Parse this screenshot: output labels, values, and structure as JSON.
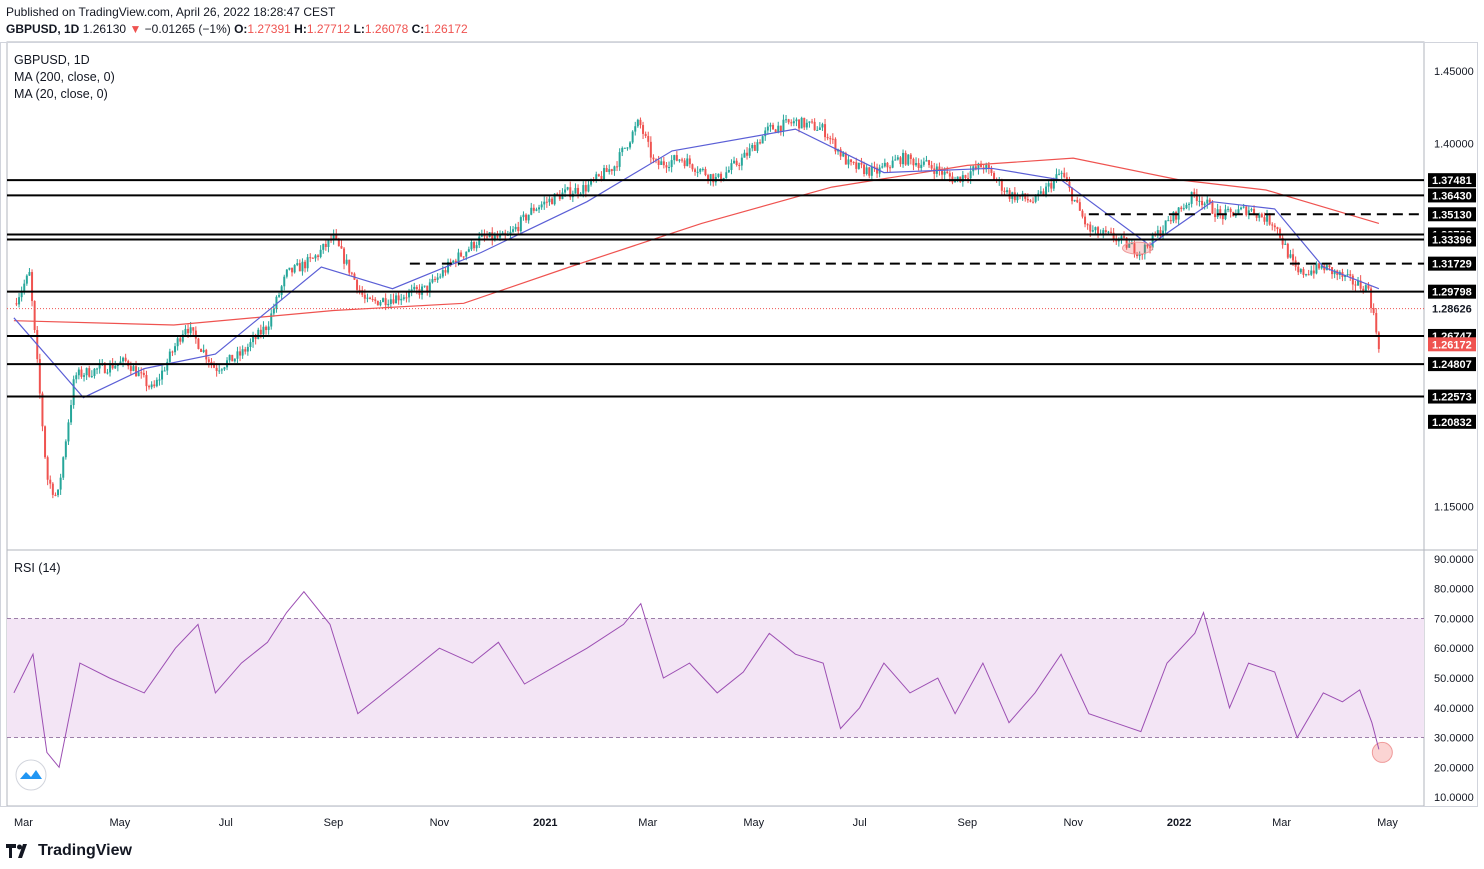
{
  "header": {
    "published": "Published on TradingView.com, April 26, 2022 18:28:47 CEST",
    "symbol": "GBPUSD, 1D",
    "last": "1.26130",
    "change": "−0.01265 (−1%)",
    "o_label": "O:",
    "o": "1.27391",
    "h_label": "H:",
    "h": "1.27712",
    "l_label": "L:",
    "l": "1.26078",
    "c_label": "C:",
    "c": "1.26172"
  },
  "legend": {
    "symbol": "GBPUSD, 1D",
    "ma200": "MA (200, close, 0)",
    "ma20": "MA (20, close, 0)",
    "rsi": "RSI (14)"
  },
  "brand": {
    "name": "TradingView"
  },
  "colors": {
    "up": "#26a69a",
    "down": "#ef5350",
    "ma200": "#ef5350",
    "ma20": "#5b5fd6",
    "rsi": "#9c4fb3",
    "rsi_band": "#f3e5f5",
    "level": "#000000",
    "current": "#ef5350"
  },
  "chart_data": [
    {
      "type": "candlestick",
      "title": "GBPUSD, 1D",
      "ylim": [
        1.12,
        1.47
      ],
      "y_ticks": [
        "1.45000",
        "1.40000",
        "1.15000"
      ],
      "x_ticks": [
        "Mar",
        "May",
        "Jul",
        "Sep",
        "Nov",
        "2021",
        "Mar",
        "May",
        "Jul",
        "Sep",
        "Nov",
        "2022",
        "Mar",
        "May"
      ],
      "x_tick_dates": [
        "2020-03",
        "2020-05",
        "2020-07",
        "2020-09",
        "2020-11",
        "2021-01",
        "2021-03",
        "2021-05",
        "2021-07",
        "2021-09",
        "2021-11",
        "2022-01",
        "2022-03",
        "2022-05"
      ],
      "close_path": [
        [
          "2020-03-01",
          1.29
        ],
        [
          "2020-03-10",
          1.31
        ],
        [
          "2020-03-20",
          1.17
        ],
        [
          "2020-03-26",
          1.155
        ],
        [
          "2020-04-05",
          1.24
        ],
        [
          "2020-04-20",
          1.245
        ],
        [
          "2020-05-05",
          1.25
        ],
        [
          "2020-05-20",
          1.23
        ],
        [
          "2020-06-08",
          1.275
        ],
        [
          "2020-06-25",
          1.245
        ],
        [
          "2020-07-10",
          1.255
        ],
        [
          "2020-07-25",
          1.275
        ],
        [
          "2020-08-05",
          1.31
        ],
        [
          "2020-08-20",
          1.32
        ],
        [
          "2020-09-01",
          1.335
        ],
        [
          "2020-09-20",
          1.29
        ],
        [
          "2020-10-10",
          1.295
        ],
        [
          "2020-10-25",
          1.3
        ],
        [
          "2020-11-10",
          1.32
        ],
        [
          "2020-11-25",
          1.335
        ],
        [
          "2020-12-10",
          1.335
        ],
        [
          "2020-12-25",
          1.355
        ],
        [
          "2021-01-10",
          1.365
        ],
        [
          "2021-01-25",
          1.37
        ],
        [
          "2021-02-10",
          1.385
        ],
        [
          "2021-02-24",
          1.415
        ],
        [
          "2021-03-05",
          1.385
        ],
        [
          "2021-03-20",
          1.39
        ],
        [
          "2021-04-10",
          1.375
        ],
        [
          "2021-04-25",
          1.39
        ],
        [
          "2021-05-10",
          1.41
        ],
        [
          "2021-05-25",
          1.415
        ],
        [
          "2021-06-10",
          1.41
        ],
        [
          "2021-06-25",
          1.385
        ],
        [
          "2021-07-10",
          1.38
        ],
        [
          "2021-07-25",
          1.39
        ],
        [
          "2021-08-10",
          1.385
        ],
        [
          "2021-08-25",
          1.375
        ],
        [
          "2021-09-10",
          1.385
        ],
        [
          "2021-09-25",
          1.365
        ],
        [
          "2021-10-10",
          1.36
        ],
        [
          "2021-10-25",
          1.38
        ],
        [
          "2021-11-10",
          1.34
        ],
        [
          "2021-11-25",
          1.335
        ],
        [
          "2021-12-10",
          1.325
        ],
        [
          "2021-12-25",
          1.345
        ],
        [
          "2022-01-10",
          1.365
        ],
        [
          "2022-01-25",
          1.35
        ],
        [
          "2022-02-10",
          1.355
        ],
        [
          "2022-02-25",
          1.345
        ],
        [
          "2022-03-10",
          1.31
        ],
        [
          "2022-03-25",
          1.315
        ],
        [
          "2022-04-10",
          1.305
        ],
        [
          "2022-04-20",
          1.3
        ],
        [
          "2022-04-26",
          1.2617
        ]
      ],
      "series": [
        {
          "name": "MA (200, close, 0)",
          "values": [
            [
              "2020-03-01",
              1.278
            ],
            [
              "2020-06-01",
              1.275
            ],
            [
              "2020-09-01",
              1.285
            ],
            [
              "2020-11-15",
              1.29
            ],
            [
              "2021-01-15",
              1.315
            ],
            [
              "2021-04-01",
              1.345
            ],
            [
              "2021-06-15",
              1.37
            ],
            [
              "2021-09-01",
              1.385
            ],
            [
              "2021-11-01",
              1.39
            ],
            [
              "2022-01-01",
              1.375
            ],
            [
              "2022-02-20",
              1.368
            ],
            [
              "2022-04-26",
              1.345
            ]
          ]
        },
        {
          "name": "MA (20, close, 0)",
          "values": [
            [
              "2020-03-01",
              1.28
            ],
            [
              "2020-04-10",
              1.225
            ],
            [
              "2020-05-15",
              1.245
            ],
            [
              "2020-06-25",
              1.255
            ],
            [
              "2020-08-25",
              1.315
            ],
            [
              "2020-10-05",
              1.3
            ],
            [
              "2020-11-25",
              1.325
            ],
            [
              "2021-01-25",
              1.36
            ],
            [
              "2021-03-15",
              1.395
            ],
            [
              "2021-05-25",
              1.41
            ],
            [
              "2021-07-15",
              1.38
            ],
            [
              "2021-09-15",
              1.383
            ],
            [
              "2021-10-25",
              1.375
            ],
            [
              "2021-12-15",
              1.33
            ],
            [
              "2022-01-20",
              1.36
            ],
            [
              "2022-02-25",
              1.355
            ],
            [
              "2022-03-25",
              1.315
            ],
            [
              "2022-04-26",
              1.3
            ]
          ]
        }
      ],
      "levels": [
        {
          "value": "1.37481",
          "style": "solid"
        },
        {
          "value": "1.36430",
          "style": "solid"
        },
        {
          "value": "1.35130",
          "style": "dashed",
          "from": "2021-11-10"
        },
        {
          "value": "1.33739",
          "style": "solid"
        },
        {
          "value": "1.33396",
          "style": "solid"
        },
        {
          "value": "1.33396",
          "style": "solid"
        },
        {
          "value": "1.31729",
          "style": "dashed",
          "from": "2020-10-15"
        },
        {
          "value": "1.29798",
          "style": "solid"
        },
        {
          "value": "1.26747",
          "style": "solid"
        },
        {
          "value": "1.24807",
          "style": "solid"
        },
        {
          "value": "1.22573",
          "style": "solid"
        }
      ],
      "extra_labels": [
        {
          "value": "1.33396"
        },
        {
          "value": "1.28626",
          "style": "dotted-red"
        },
        {
          "value": "1.20832"
        }
      ],
      "current_price": "1.26172"
    },
    {
      "type": "line",
      "title": "RSI (14)",
      "ylim": [
        7,
        93
      ],
      "y_ticks": [
        "90.0000",
        "80.0000",
        "70.0000",
        "60.0000",
        "50.0000",
        "40.0000",
        "30.0000",
        "20.0000",
        "10.0000"
      ],
      "band": [
        30,
        70
      ],
      "series": [
        {
          "name": "RSI (14)",
          "values": [
            [
              "2020-03-01",
              45
            ],
            [
              "2020-03-12",
              58
            ],
            [
              "2020-03-20",
              25
            ],
            [
              "2020-03-27",
              20
            ],
            [
              "2020-04-08",
              55
            ],
            [
              "2020-04-25",
              50
            ],
            [
              "2020-05-15",
              45
            ],
            [
              "2020-06-02",
              60
            ],
            [
              "2020-06-15",
              68
            ],
            [
              "2020-06-25",
              45
            ],
            [
              "2020-07-10",
              55
            ],
            [
              "2020-07-25",
              62
            ],
            [
              "2020-08-05",
              72
            ],
            [
              "2020-08-15",
              79
            ],
            [
              "2020-08-30",
              68
            ],
            [
              "2020-09-15",
              38
            ],
            [
              "2020-09-30",
              45
            ],
            [
              "2020-10-15",
              52
            ],
            [
              "2020-11-01",
              60
            ],
            [
              "2020-11-20",
              55
            ],
            [
              "2020-12-05",
              62
            ],
            [
              "2020-12-20",
              48
            ],
            [
              "2021-01-10",
              55
            ],
            [
              "2021-01-25",
              60
            ],
            [
              "2021-02-15",
              68
            ],
            [
              "2021-02-25",
              75
            ],
            [
              "2021-03-10",
              50
            ],
            [
              "2021-03-25",
              55
            ],
            [
              "2021-04-10",
              45
            ],
            [
              "2021-04-25",
              52
            ],
            [
              "2021-05-10",
              65
            ],
            [
              "2021-05-25",
              58
            ],
            [
              "2021-06-10",
              55
            ],
            [
              "2021-06-20",
              33
            ],
            [
              "2021-07-01",
              40
            ],
            [
              "2021-07-15",
              55
            ],
            [
              "2021-07-30",
              45
            ],
            [
              "2021-08-15",
              50
            ],
            [
              "2021-08-25",
              38
            ],
            [
              "2021-09-10",
              55
            ],
            [
              "2021-09-25",
              35
            ],
            [
              "2021-10-10",
              45
            ],
            [
              "2021-10-25",
              58
            ],
            [
              "2021-11-10",
              38
            ],
            [
              "2021-11-25",
              35
            ],
            [
              "2021-12-10",
              32
            ],
            [
              "2021-12-25",
              55
            ],
            [
              "2022-01-10",
              65
            ],
            [
              "2022-01-15",
              72
            ],
            [
              "2022-01-30",
              40
            ],
            [
              "2022-02-10",
              55
            ],
            [
              "2022-02-25",
              52
            ],
            [
              "2022-03-10",
              30
            ],
            [
              "2022-03-25",
              45
            ],
            [
              "2022-04-05",
              42
            ],
            [
              "2022-04-15",
              46
            ],
            [
              "2022-04-22",
              35
            ],
            [
              "2022-04-26",
              26
            ]
          ]
        }
      ]
    }
  ]
}
